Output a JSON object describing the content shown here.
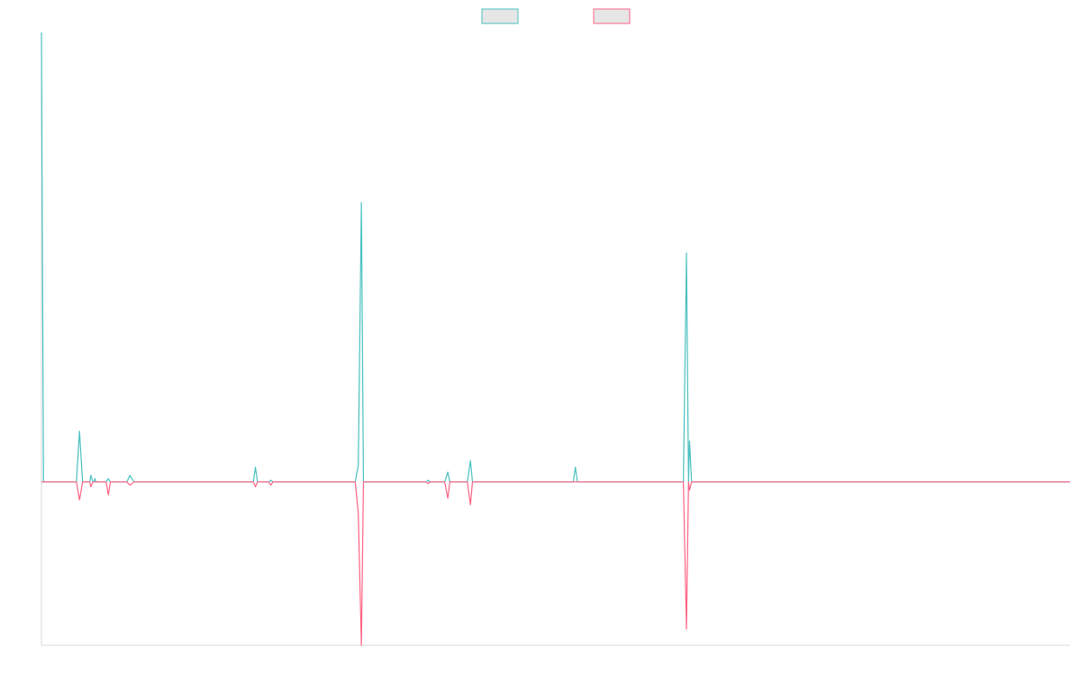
{
  "chart_data": {
    "type": "line",
    "title": "",
    "xlabel": "",
    "ylabel": "",
    "grid": false,
    "legend": "top-center",
    "ylim": [
      -100,
      275
    ],
    "xlim": [
      0,
      100
    ],
    "series": [
      {
        "color": "#4bc0c0",
        "fill": "#e6e6e6",
        "points": [
          [
            0,
            275
          ],
          [
            0.2,
            0
          ],
          [
            3.4,
            0
          ],
          [
            3.7,
            31
          ],
          [
            4.0,
            0
          ],
          [
            4.7,
            0
          ],
          [
            4.8,
            4
          ],
          [
            5.0,
            0
          ],
          [
            5.1,
            0
          ],
          [
            5.2,
            2
          ],
          [
            5.3,
            0
          ],
          [
            6.3,
            0
          ],
          [
            6.5,
            2
          ],
          [
            6.7,
            0
          ],
          [
            8.3,
            0
          ],
          [
            8.6,
            4
          ],
          [
            9.0,
            0
          ],
          [
            20.6,
            0
          ],
          [
            20.8,
            9
          ],
          [
            21.0,
            0
          ],
          [
            22.1,
            0
          ],
          [
            22.3,
            1
          ],
          [
            22.5,
            0
          ],
          [
            30.5,
            0
          ],
          [
            30.8,
            10
          ],
          [
            31.1,
            171
          ],
          [
            31.3,
            0
          ],
          [
            37.4,
            0
          ],
          [
            37.6,
            1
          ],
          [
            37.8,
            0
          ],
          [
            39.2,
            0
          ],
          [
            39.5,
            6
          ],
          [
            39.7,
            0
          ],
          [
            41.4,
            0
          ],
          [
            41.7,
            13
          ],
          [
            41.9,
            0
          ],
          [
            51.7,
            0
          ],
          [
            51.9,
            9
          ],
          [
            52.1,
            0
          ],
          [
            62.4,
            0
          ],
          [
            62.7,
            140
          ],
          [
            62.9,
            0
          ],
          [
            63.0,
            25
          ],
          [
            63.2,
            0
          ],
          [
            100,
            0
          ]
        ]
      },
      {
        "color": "#ff6384",
        "fill": "#e6e6e6",
        "points": [
          [
            0,
            0
          ],
          [
            3.4,
            0
          ],
          [
            3.7,
            -11
          ],
          [
            4.0,
            0
          ],
          [
            4.7,
            0
          ],
          [
            4.8,
            -3
          ],
          [
            5.0,
            0
          ],
          [
            6.3,
            0
          ],
          [
            6.5,
            -8
          ],
          [
            6.7,
            0
          ],
          [
            8.3,
            0
          ],
          [
            8.6,
            -2
          ],
          [
            9.0,
            0
          ],
          [
            20.6,
            0
          ],
          [
            20.8,
            -3
          ],
          [
            21.0,
            0
          ],
          [
            22.1,
            0
          ],
          [
            22.3,
            -2
          ],
          [
            22.5,
            0
          ],
          [
            30.5,
            0
          ],
          [
            30.8,
            -19
          ],
          [
            31.1,
            -100
          ],
          [
            31.3,
            0
          ],
          [
            37.4,
            0
          ],
          [
            37.6,
            -1
          ],
          [
            37.8,
            0
          ],
          [
            39.2,
            0
          ],
          [
            39.5,
            -10
          ],
          [
            39.7,
            0
          ],
          [
            41.4,
            0
          ],
          [
            41.7,
            -14
          ],
          [
            41.9,
            0
          ],
          [
            62.4,
            0
          ],
          [
            62.7,
            -90
          ],
          [
            62.9,
            0
          ],
          [
            63.0,
            -5
          ],
          [
            63.2,
            0
          ],
          [
            100,
            0
          ]
        ]
      }
    ]
  }
}
